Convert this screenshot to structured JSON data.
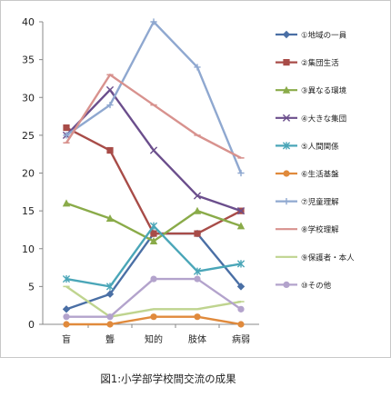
{
  "chart_data": {
    "type": "line",
    "title": "",
    "caption": "図1:小学部学校間交流の成果",
    "xlabel": "",
    "ylabel": "",
    "categories": [
      "盲",
      "聾",
      "知的",
      "肢体",
      "病弱"
    ],
    "ylim": [
      0,
      40
    ],
    "yticks": [
      0,
      5,
      10,
      15,
      20,
      25,
      30,
      35,
      40
    ],
    "grid": false,
    "legend_position": "right",
    "series": [
      {
        "name": "①地域の一員",
        "color": "#4a6fa5",
        "marker": "diamond",
        "values": [
          2,
          4,
          12,
          12,
          5
        ]
      },
      {
        "name": "②集団生活",
        "color": "#a84c48",
        "marker": "square",
        "values": [
          26,
          23,
          12,
          12,
          15
        ]
      },
      {
        "name": "③異なる環境",
        "color": "#8aab49",
        "marker": "triangle",
        "values": [
          16,
          14,
          11,
          15,
          13
        ]
      },
      {
        "name": "④大きな集団",
        "color": "#6b4e8c",
        "marker": "x",
        "values": [
          25,
          31,
          23,
          17,
          15
        ]
      },
      {
        "name": "⑤人間関係",
        "color": "#4aa6b8",
        "marker": "star",
        "values": [
          6,
          5,
          13,
          7,
          8
        ]
      },
      {
        "name": "⑥生活基盤",
        "color": "#e08a3c",
        "marker": "circle",
        "values": [
          0,
          0,
          1,
          1,
          0
        ]
      },
      {
        "name": "⑦児童理解",
        "color": "#8fa8d0",
        "marker": "plus",
        "values": [
          25,
          29,
          40,
          34,
          20
        ]
      },
      {
        "name": "⑧学校理解",
        "color": "#d8928e",
        "marker": "dash",
        "values": [
          24,
          33,
          29,
          25,
          22
        ]
      },
      {
        "name": "⑨保護者・本人",
        "color": "#bfd48f",
        "marker": "dash",
        "values": [
          5,
          1,
          2,
          2,
          3
        ]
      },
      {
        "name": "⑩その他",
        "color": "#b3a3cc",
        "marker": "circle",
        "values": [
          1,
          1,
          6,
          6,
          2
        ]
      }
    ]
  }
}
